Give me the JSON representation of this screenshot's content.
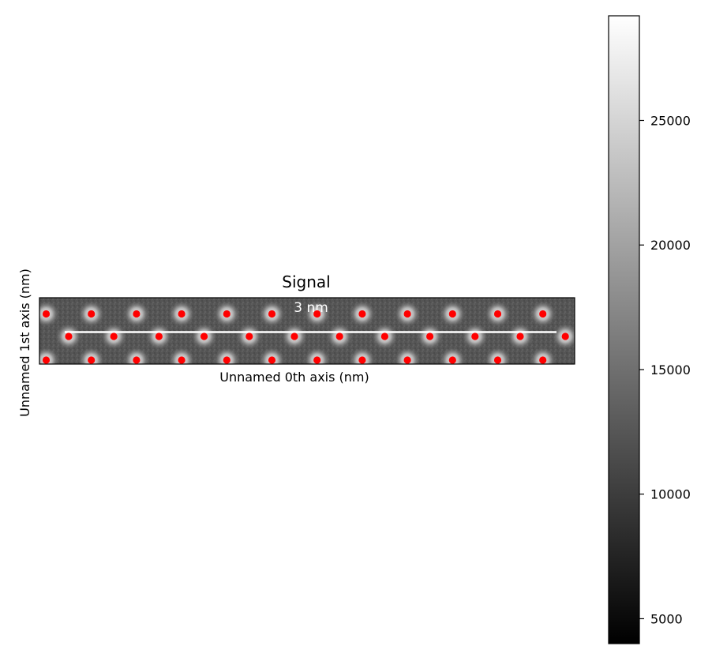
{
  "chart_data": {
    "type": "heatmap",
    "title": "Signal",
    "xlabel": "Unnamed 0th axis (nm)",
    "ylabel": "Unnamed 1st axis (nm)",
    "colormap": "gray",
    "colorbar": {
      "range": [
        4000,
        29200
      ],
      "ticks": [
        5000,
        10000,
        15000,
        20000,
        25000
      ],
      "tick_labels": [
        "5000",
        "10000",
        "15000",
        "20000",
        "25000"
      ]
    },
    "scalebar": {
      "label": "3 nm",
      "color": "#ffffff"
    },
    "atom_marker_color": "#ff0000",
    "atom_rows": [
      {
        "row": "top",
        "count": 12
      },
      {
        "row": "middle",
        "count": 12
      },
      {
        "row": "bottom",
        "count": 12
      }
    ],
    "grid": false
  }
}
